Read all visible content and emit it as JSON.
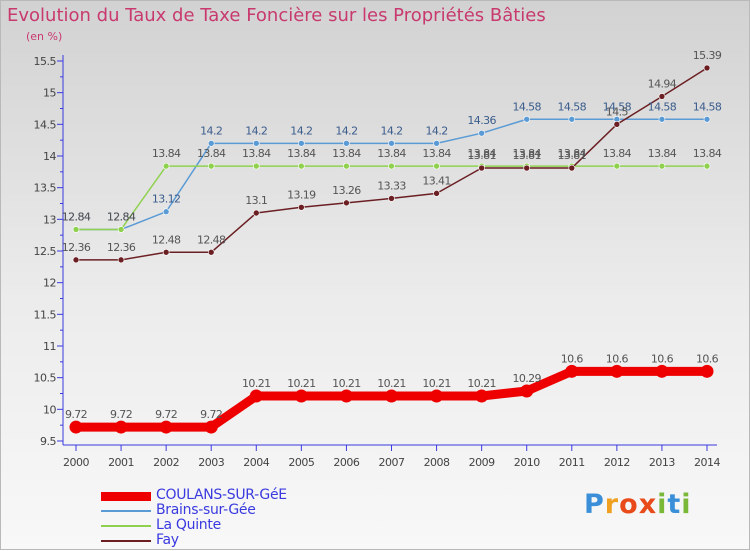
{
  "header": {
    "title": "Evolution du Taux de Taxe Foncière sur les Propriétés Bâties",
    "unit": "(en %)"
  },
  "logo": {
    "letters": [
      "P",
      "r",
      "o",
      "x",
      "i",
      "t",
      "i"
    ],
    "colors": [
      "#3a8fd8",
      "#f0a020",
      "#e84a1a",
      "#e84a1a",
      "#7ab838",
      "#3a8fd8",
      "#7ab838"
    ]
  },
  "chart_data": {
    "type": "line",
    "x": [
      2000,
      2001,
      2002,
      2003,
      2004,
      2005,
      2006,
      2007,
      2008,
      2009,
      2010,
      2011,
      2012,
      2013,
      2014
    ],
    "xlim": [
      2000,
      2014
    ],
    "ylim": [
      9.5,
      15.5
    ],
    "yticks": [
      9.5,
      10,
      10.5,
      11,
      11.5,
      12,
      12.5,
      13,
      13.5,
      14,
      14.5,
      15,
      15.5
    ],
    "grid": false,
    "legend_position": "bottom-left",
    "series": [
      {
        "name": "COULANS-SUR-GéE",
        "color": "#ee0000",
        "values": [
          9.72,
          9.72,
          9.72,
          9.72,
          10.21,
          10.21,
          10.21,
          10.21,
          10.21,
          10.21,
          10.29,
          10.6,
          10.6,
          10.6,
          10.6
        ],
        "labels": [
          "9.72",
          "9.72",
          "9.72",
          "9.72",
          "10.21",
          "10.21",
          "10.21",
          "10.21",
          "10.21",
          "10.21",
          "10.29",
          "10.6",
          "10.6",
          "10.6",
          "10.6"
        ],
        "label_color": "#555555"
      },
      {
        "name": "Brains-sur-Gée",
        "color": "#5b9bd5",
        "values": [
          12.84,
          12.84,
          13.12,
          14.2,
          14.2,
          14.2,
          14.2,
          14.2,
          14.2,
          14.36,
          14.58,
          14.58,
          14.58,
          14.58,
          14.58
        ],
        "labels": [
          "12.84",
          "12.84",
          "13.12",
          "14.2",
          "14.2",
          "14.2",
          "14.2",
          "14.2",
          "14.2",
          "14.36",
          "14.58",
          "14.58",
          "14.58",
          "14.58",
          "14.58"
        ],
        "label_color": "#3a5c8c"
      },
      {
        "name": "La Quinte",
        "color": "#8fd14f",
        "values": [
          12.84,
          12.84,
          13.84,
          13.84,
          13.84,
          13.84,
          13.84,
          13.84,
          13.84,
          13.84,
          13.84,
          13.84,
          13.84,
          13.84,
          13.84
        ],
        "labels": [
          "12.84",
          "12.84",
          "13.84",
          "13.84",
          "13.84",
          "13.84",
          "13.84",
          "13.84",
          "13.84",
          "13.84",
          "13.84",
          "13.84",
          "13.84",
          "13.84",
          "13.84"
        ],
        "label_color": "#555555"
      },
      {
        "name": "Fay",
        "color": "#6b1f23",
        "values": [
          12.36,
          12.36,
          12.48,
          12.48,
          13.1,
          13.19,
          13.26,
          13.33,
          13.41,
          13.81,
          13.81,
          13.81,
          14.5,
          14.94,
          15.39
        ],
        "labels": [
          "12.36",
          "12.36",
          "12.48",
          "12.48",
          "13.1",
          "13.19",
          "13.26",
          "13.33",
          "13.41",
          "13.81",
          "13.81",
          "13.81",
          "14.5",
          "14.94",
          "15.39"
        ],
        "label_color": "#555555"
      }
    ]
  }
}
